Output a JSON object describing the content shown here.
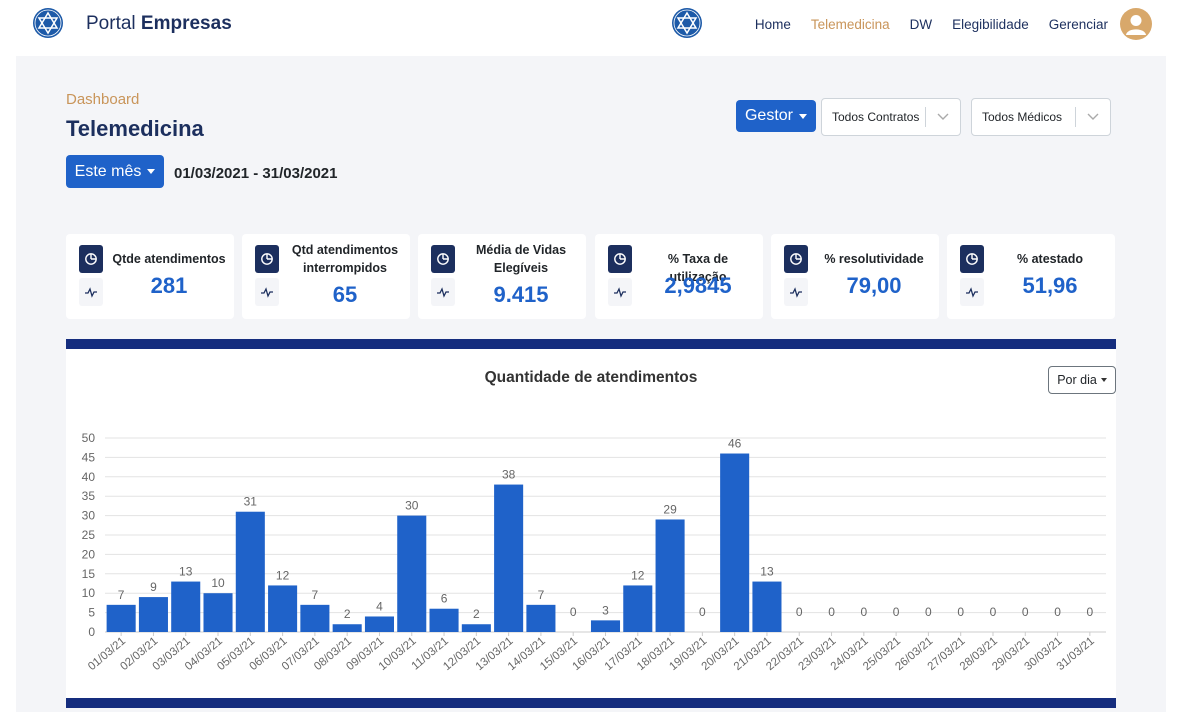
{
  "header": {
    "brand_light": "Portal",
    "brand_bold": "Empresas",
    "nav": [
      {
        "label": "Home",
        "active": false
      },
      {
        "label": "Telemedicina",
        "active": true
      },
      {
        "label": "DW",
        "active": false
      },
      {
        "label": "Elegibilidade",
        "active": false
      },
      {
        "label": "Gerenciar",
        "active": false
      }
    ],
    "avatar_icon": "user-icon"
  },
  "page": {
    "breadcrumb": "Dashboard",
    "title": "Telemedicina",
    "period_button": "Este mês",
    "period_range": "01/03/2021 - 31/03/2021",
    "role_button": "Gestor",
    "contracts_select": "Todos Contratos",
    "doctors_select": "Todos Médicos"
  },
  "kpis": [
    {
      "label": "Qtde atendimentos",
      "value": "281"
    },
    {
      "label": "Qtd atendimentos interrompidos",
      "value": "65"
    },
    {
      "label": "Média de Vidas Elegíveis",
      "value": "9.415"
    },
    {
      "label": "% Taxa de utilização",
      "value": "2,9845"
    },
    {
      "label": "% resolutividade",
      "value": "79,00"
    },
    {
      "label": "% atestado",
      "value": "51,96"
    }
  ],
  "chart_controls": {
    "granularity_button": "Por dia"
  },
  "colors": {
    "accent": "#1f62c9",
    "navy": "#1c2f5e",
    "gold": "#c9955a",
    "bar": "#1f62c9",
    "divider": "#152d7e"
  },
  "chart_data": {
    "type": "bar",
    "title": "Quantidade de atendimentos",
    "categories": [
      "01/03/21",
      "02/03/21",
      "03/03/21",
      "04/03/21",
      "05/03/21",
      "06/03/21",
      "07/03/21",
      "08/03/21",
      "09/03/21",
      "10/03/21",
      "11/03/21",
      "12/03/21",
      "13/03/21",
      "14/03/21",
      "15/03/21",
      "16/03/21",
      "17/03/21",
      "18/03/21",
      "19/03/21",
      "20/03/21",
      "21/03/21",
      "22/03/21",
      "23/03/21",
      "24/03/21",
      "25/03/21",
      "26/03/21",
      "27/03/21",
      "28/03/21",
      "29/03/21",
      "30/03/21",
      "31/03/21"
    ],
    "values": [
      7,
      9,
      13,
      10,
      31,
      12,
      7,
      2,
      4,
      30,
      6,
      2,
      38,
      7,
      0,
      3,
      12,
      29,
      0,
      46,
      13,
      0,
      0,
      0,
      0,
      0,
      0,
      0,
      0,
      0,
      0
    ],
    "ylim": [
      0,
      50
    ],
    "yticks": [
      0,
      5,
      10,
      15,
      20,
      25,
      30,
      35,
      40,
      45,
      50
    ],
    "grid": true,
    "data_labels": true,
    "xlabel": "",
    "ylabel": ""
  }
}
